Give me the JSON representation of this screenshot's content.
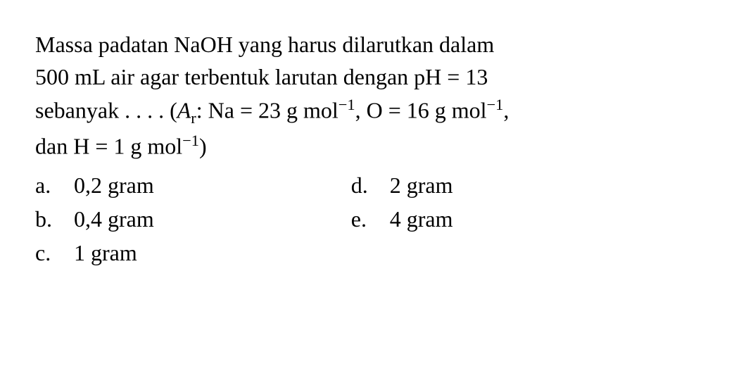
{
  "question": {
    "line1": "Massa padatan NaOH yang harus dilarutkan dalam",
    "line2_prefix": "500 mL air agar terbentuk larutan dengan pH = 13",
    "line3_prefix": "sebanyak . . . . (",
    "line3_ar_symbol": "A",
    "line3_ar_sub": "r",
    "line3_mid1": ": Na = 23 g mol",
    "line3_sup1": "−1",
    "line3_mid2": ", O = 16 g mol",
    "line3_sup2": "−1",
    "line3_mid3": ",",
    "line4_prefix": "dan H = 1 g mol",
    "line4_sup": "−1",
    "line4_suffix": ")"
  },
  "options": {
    "a": {
      "letter": "a.",
      "text": "0,2 gram"
    },
    "b": {
      "letter": "b.",
      "text": "0,4 gram"
    },
    "c": {
      "letter": "c.",
      "text": "1 gram"
    },
    "d": {
      "letter": "d.",
      "text": "2 gram"
    },
    "e": {
      "letter": "e.",
      "text": "4 gram"
    }
  },
  "styling": {
    "font_family": "Times New Roman",
    "font_size_pt": 32,
    "text_color": "#000000",
    "background_color": "#ffffff",
    "line_height": 1.45
  }
}
